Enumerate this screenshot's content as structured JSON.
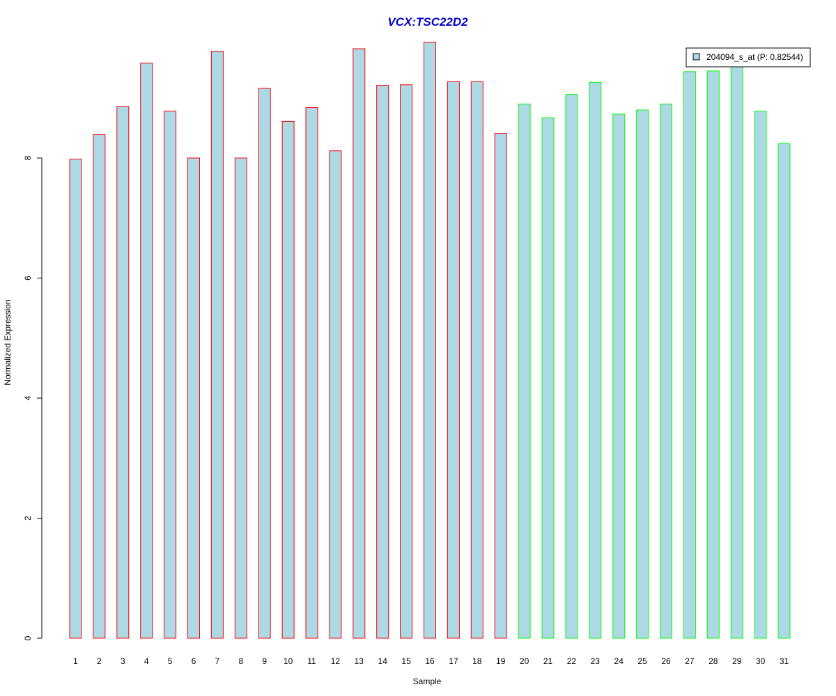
{
  "chart_data": {
    "type": "bar",
    "title": "VCX:TSC22D2",
    "xlabel": "Sample",
    "ylabel": "Normalized Expression",
    "categories": [
      "1",
      "2",
      "3",
      "4",
      "5",
      "6",
      "7",
      "8",
      "9",
      "10",
      "11",
      "12",
      "13",
      "14",
      "15",
      "16",
      "17",
      "18",
      "19",
      "20",
      "21",
      "22",
      "23",
      "24",
      "25",
      "26",
      "27",
      "28",
      "29",
      "30",
      "31"
    ],
    "series": [
      {
        "name": "204094_s_at (P: 0.82544)",
        "values": [
          7.98,
          8.39,
          8.86,
          9.58,
          8.78,
          8.0,
          9.78,
          8.0,
          9.16,
          8.61,
          8.84,
          8.12,
          9.82,
          9.21,
          9.22,
          9.93,
          9.27,
          9.27,
          8.41,
          8.9,
          8.67,
          9.06,
          9.26,
          8.73,
          8.8,
          8.9,
          9.44,
          9.45,
          9.58,
          8.78,
          8.24
        ]
      }
    ],
    "group_border_colors": [
      "#ff0000",
      "#ff0000",
      "#ff0000",
      "#ff0000",
      "#ff0000",
      "#ff0000",
      "#ff0000",
      "#ff0000",
      "#ff0000",
      "#ff0000",
      "#ff0000",
      "#ff0000",
      "#ff0000",
      "#ff0000",
      "#ff0000",
      "#ff0000",
      "#ff0000",
      "#ff0000",
      "#ff0000",
      "#00ff00",
      "#00ff00",
      "#00ff00",
      "#00ff00",
      "#00ff00",
      "#00ff00",
      "#00ff00",
      "#00ff00",
      "#00ff00",
      "#00ff00",
      "#00ff00",
      "#00ff00"
    ],
    "ylim": [
      0,
      10
    ],
    "yticks": [
      0,
      2,
      4,
      6,
      8
    ],
    "legend_position": "top-right",
    "grid": false,
    "colors": {
      "bar_fill": "#add8e6",
      "title": "#0000cd"
    }
  }
}
